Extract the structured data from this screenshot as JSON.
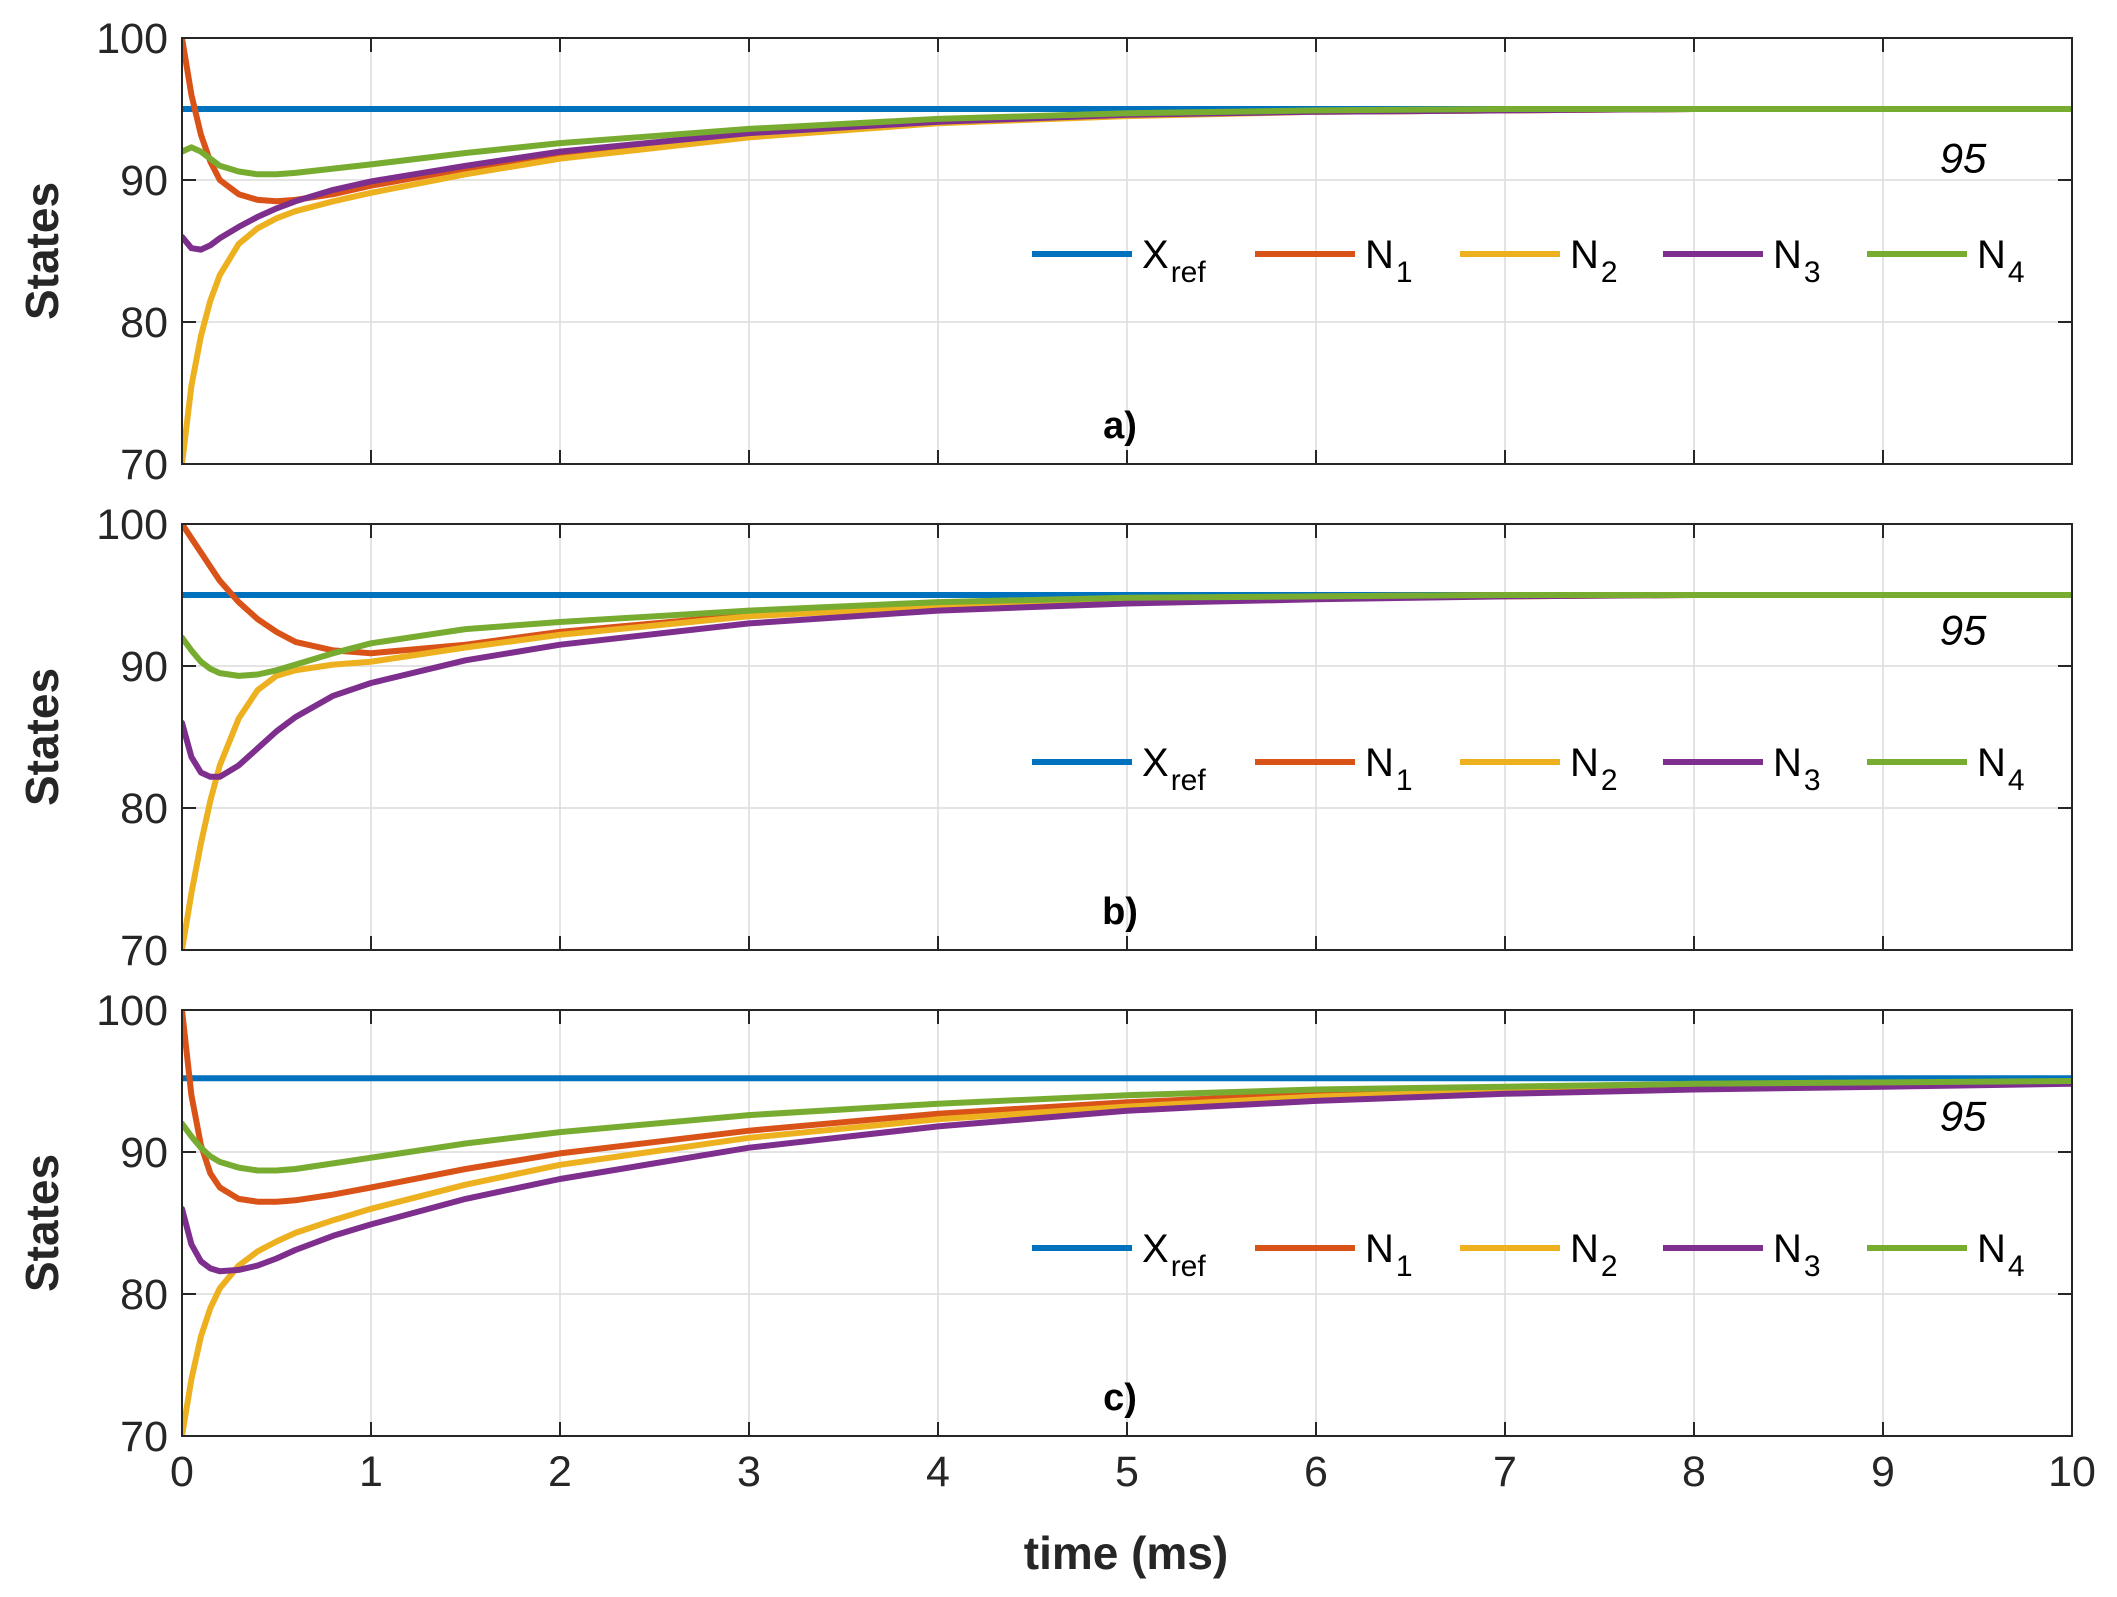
{
  "figure": {
    "xlabel": "time (ms)",
    "x_ticks": [
      "0",
      "1",
      "2",
      "3",
      "4",
      "5",
      "6",
      "7",
      "8",
      "9",
      "10"
    ]
  },
  "colors": {
    "xref": "#0072BD",
    "n1": "#D95319",
    "n2": "#EDB120",
    "n3": "#7E2F8E",
    "n4": "#77AC30"
  },
  "chart_data": [
    {
      "type": "line",
      "panel_label": "a)",
      "title": "",
      "xlabel": "time (ms)",
      "ylabel": "States",
      "xlim": [
        0,
        10
      ],
      "ylim": [
        70,
        100
      ],
      "y_ticks": [
        "70",
        "80",
        "90",
        "100"
      ],
      "grid": true,
      "legend_position": "center-right",
      "annotation": {
        "text": "95",
        "x": 9.3,
        "y": 91.5
      },
      "x": [
        0,
        0.05,
        0.1,
        0.15,
        0.2,
        0.3,
        0.4,
        0.5,
        0.6,
        0.8,
        1,
        1.5,
        2,
        3,
        4,
        5,
        6,
        7,
        8,
        9,
        10
      ],
      "series": [
        {
          "key": "xref",
          "name": "X",
          "subscript": "ref",
          "values": [
            95,
            95,
            95,
            95,
            95,
            95,
            95,
            95,
            95,
            95,
            95,
            95,
            95,
            95,
            95,
            95,
            95,
            95,
            95,
            95,
            95
          ]
        },
        {
          "key": "n1",
          "name": "N",
          "subscript": "1",
          "values": [
            100,
            96,
            93.2,
            91.3,
            90,
            89,
            88.6,
            88.5,
            88.6,
            89,
            89.6,
            90.8,
            91.8,
            93.2,
            94.1,
            94.6,
            94.8,
            94.9,
            95,
            95,
            95
          ]
        },
        {
          "key": "n2",
          "name": "N",
          "subscript": "2",
          "values": [
            70,
            75.5,
            79,
            81.5,
            83.3,
            85.5,
            86.6,
            87.3,
            87.8,
            88.5,
            89.1,
            90.4,
            91.5,
            93,
            94,
            94.5,
            94.8,
            94.9,
            95,
            95,
            95
          ]
        },
        {
          "key": "n3",
          "name": "N",
          "subscript": "3",
          "values": [
            86,
            85.2,
            85.1,
            85.4,
            85.9,
            86.7,
            87.4,
            88,
            88.5,
            89.3,
            89.9,
            91,
            92,
            93.3,
            94.1,
            94.6,
            94.8,
            94.9,
            95,
            95,
            95
          ]
        },
        {
          "key": "n4",
          "name": "N",
          "subscript": "4",
          "values": [
            92,
            92.3,
            92,
            91.5,
            91,
            90.6,
            90.4,
            90.4,
            90.5,
            90.8,
            91.1,
            91.9,
            92.6,
            93.6,
            94.3,
            94.7,
            94.9,
            95,
            95,
            95,
            95
          ]
        }
      ]
    },
    {
      "type": "line",
      "panel_label": "b)",
      "title": "",
      "xlabel": "time (ms)",
      "ylabel": "States",
      "xlim": [
        0,
        10
      ],
      "ylim": [
        70,
        100
      ],
      "y_ticks": [
        "70",
        "80",
        "90",
        "100"
      ],
      "grid": true,
      "legend_position": "center-right",
      "annotation": {
        "text": "95",
        "x": 9.3,
        "y": 92.5
      },
      "x": [
        0,
        0.05,
        0.1,
        0.15,
        0.2,
        0.3,
        0.4,
        0.5,
        0.6,
        0.8,
        1,
        1.5,
        2,
        3,
        4,
        5,
        6,
        7,
        8,
        9,
        10
      ],
      "series": [
        {
          "key": "xref",
          "name": "X",
          "subscript": "ref",
          "values": [
            95,
            95,
            95,
            95,
            95,
            95,
            95,
            95,
            95,
            95,
            95,
            95,
            95,
            95,
            95,
            95,
            95,
            95,
            95,
            95,
            95
          ]
        },
        {
          "key": "n1",
          "name": "N",
          "subscript": "1",
          "values": [
            100,
            99,
            98,
            97,
            96,
            94.5,
            93.3,
            92.4,
            91.7,
            91.1,
            90.9,
            91.5,
            92.4,
            93.6,
            94.3,
            94.7,
            94.9,
            95,
            95,
            95,
            95
          ]
        },
        {
          "key": "n2",
          "name": "N",
          "subscript": "2",
          "values": [
            70,
            74,
            77.5,
            80.5,
            83,
            86.3,
            88.3,
            89.3,
            89.7,
            90.1,
            90.3,
            91.3,
            92.2,
            93.5,
            94.2,
            94.6,
            94.8,
            94.9,
            95,
            95,
            95
          ]
        },
        {
          "key": "n3",
          "name": "N",
          "subscript": "3",
          "values": [
            86,
            83.6,
            82.5,
            82.2,
            82.2,
            83,
            84.2,
            85.4,
            86.4,
            87.9,
            88.8,
            90.4,
            91.5,
            93,
            93.9,
            94.4,
            94.7,
            94.9,
            95,
            95,
            95
          ]
        },
        {
          "key": "n4",
          "name": "N",
          "subscript": "4",
          "values": [
            92,
            91.1,
            90.3,
            89.8,
            89.5,
            89.3,
            89.4,
            89.7,
            90.1,
            90.9,
            91.6,
            92.6,
            93.1,
            93.9,
            94.5,
            94.8,
            94.9,
            95,
            95,
            95,
            95
          ]
        }
      ]
    },
    {
      "type": "line",
      "panel_label": "c)",
      "title": "",
      "xlabel": "time (ms)",
      "ylabel": "States",
      "xlim": [
        0,
        10
      ],
      "ylim": [
        70,
        100
      ],
      "y_ticks": [
        "70",
        "80",
        "90",
        "100"
      ],
      "grid": true,
      "legend_position": "center-right",
      "annotation": {
        "text": "95",
        "x": 9.3,
        "y": 92.5
      },
      "x": [
        0,
        0.05,
        0.1,
        0.15,
        0.2,
        0.3,
        0.4,
        0.5,
        0.6,
        0.8,
        1,
        1.5,
        2,
        3,
        4,
        5,
        6,
        7,
        8,
        9,
        10
      ],
      "series": [
        {
          "key": "xref",
          "name": "X",
          "subscript": "ref",
          "values": [
            95.2,
            95.2,
            95.2,
            95.2,
            95.2,
            95.2,
            95.2,
            95.2,
            95.2,
            95.2,
            95.2,
            95.2,
            95.2,
            95.2,
            95.2,
            95.2,
            95.2,
            95.2,
            95.2,
            95.2,
            95.2
          ]
        },
        {
          "key": "n1",
          "name": "N",
          "subscript": "1",
          "values": [
            100,
            94,
            90.5,
            88.5,
            87.5,
            86.7,
            86.5,
            86.5,
            86.6,
            87,
            87.5,
            88.8,
            89.9,
            91.5,
            92.7,
            93.5,
            94.1,
            94.5,
            94.7,
            94.8,
            94.9
          ]
        },
        {
          "key": "n2",
          "name": "N",
          "subscript": "2",
          "values": [
            70,
            74,
            77,
            79,
            80.4,
            82,
            83,
            83.7,
            84.3,
            85.2,
            86,
            87.7,
            89.1,
            91,
            92.3,
            93.2,
            93.9,
            94.3,
            94.6,
            94.8,
            94.9
          ]
        },
        {
          "key": "n3",
          "name": "N",
          "subscript": "3",
          "values": [
            86,
            83.5,
            82.3,
            81.8,
            81.6,
            81.7,
            82,
            82.5,
            83.1,
            84.1,
            84.9,
            86.7,
            88.1,
            90.3,
            91.8,
            92.9,
            93.6,
            94.1,
            94.4,
            94.6,
            94.8
          ]
        },
        {
          "key": "n4",
          "name": "N",
          "subscript": "4",
          "values": [
            92,
            91.1,
            90.3,
            89.7,
            89.3,
            88.9,
            88.7,
            88.7,
            88.8,
            89.2,
            89.6,
            90.6,
            91.4,
            92.6,
            93.4,
            94,
            94.4,
            94.6,
            94.8,
            94.9,
            95
          ]
        }
      ]
    }
  ]
}
